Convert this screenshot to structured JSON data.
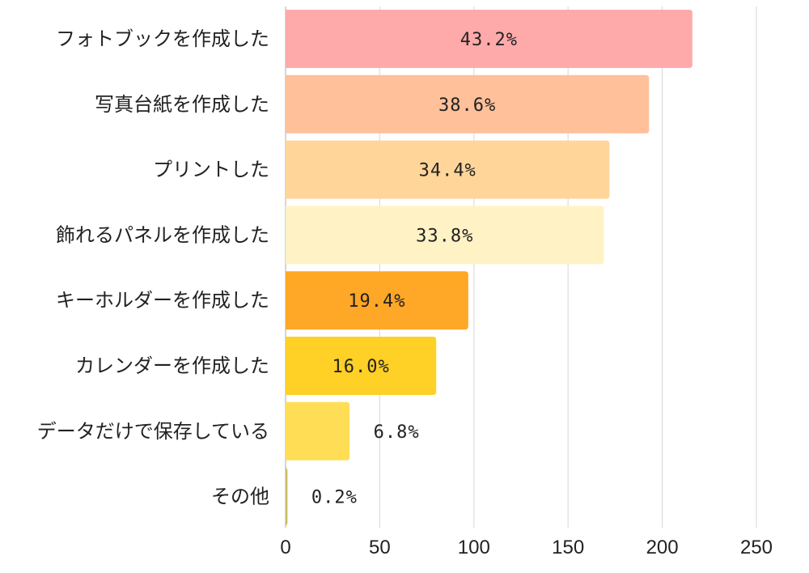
{
  "chart_data": {
    "type": "bar",
    "orientation": "horizontal",
    "title": "",
    "xlabel": "",
    "ylabel": "",
    "xlim": [
      0,
      250
    ],
    "xticks": [
      0,
      50,
      100,
      150,
      200,
      250
    ],
    "grid": true,
    "categories": [
      "フォトブックを作成した",
      "写真台紙を作成した",
      "プリントした",
      "飾れるパネルを作成した",
      "キーホルダーを作成した",
      "カレンダーを作成した",
      "データだけで保存している",
      "その他"
    ],
    "values": [
      216,
      193,
      172,
      169,
      97,
      80,
      34,
      1
    ],
    "labels": [
      "43.2%",
      "38.6%",
      "34.4%",
      "33.8%",
      "19.4%",
      "16.0%",
      "6.8%",
      "0.2%"
    ],
    "colors": [
      "#FFAAAA",
      "#FFC09A",
      "#FFD59A",
      "#FFF2C4",
      "#FFA726",
      "#FFD026",
      "#FFDD55",
      "#C8C060"
    ]
  }
}
